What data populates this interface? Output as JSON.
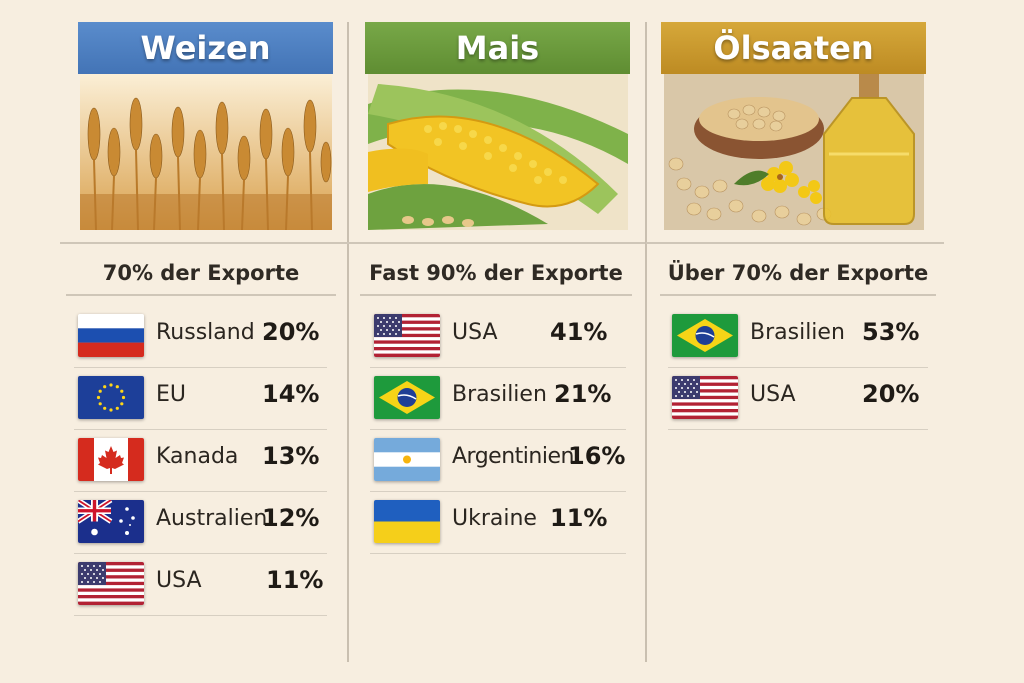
{
  "columns": [
    {
      "title": "Weizen",
      "color": "#4f7fc0",
      "subtitle": "70% der Exporte",
      "image": "wheat-field-photo",
      "rows": [
        {
          "country": "Russland",
          "pct": "20%",
          "flag": "russia-flag"
        },
        {
          "country": "EU",
          "pct": "14%",
          "flag": "eu-flag"
        },
        {
          "country": "Kanada",
          "pct": "13%",
          "flag": "canada-flag"
        },
        {
          "country": "Australien",
          "pct": "12%",
          "flag": "australia-flag"
        },
        {
          "country": "USA",
          "pct": "11%",
          "flag": "usa-flag"
        }
      ]
    },
    {
      "title": "Mais",
      "color": "#6b9a3c",
      "subtitle": "Fast 90% der Exporte",
      "image": "corn-cob-photo",
      "rows": [
        {
          "country": "USA",
          "pct": "41%",
          "flag": "usa-flag"
        },
        {
          "country": "Brasilien",
          "pct": "21%",
          "flag": "brazil-flag"
        },
        {
          "country": "Argentinien",
          "pct": "16%",
          "flag": "argentina-flag"
        },
        {
          "country": "Ukraine",
          "pct": "11%",
          "flag": "ukraine-flag"
        }
      ]
    },
    {
      "title": "Ölsaaten",
      "color": "#c99a2e",
      "subtitle": "Über 70% der Exporte",
      "image": "soybeans-oil-photo",
      "rows": [
        {
          "country": "Brasilien",
          "pct": "53%",
          "flag": "brazil-flag"
        },
        {
          "country": "USA",
          "pct": "20%",
          "flag": "usa-flag"
        }
      ]
    }
  ]
}
